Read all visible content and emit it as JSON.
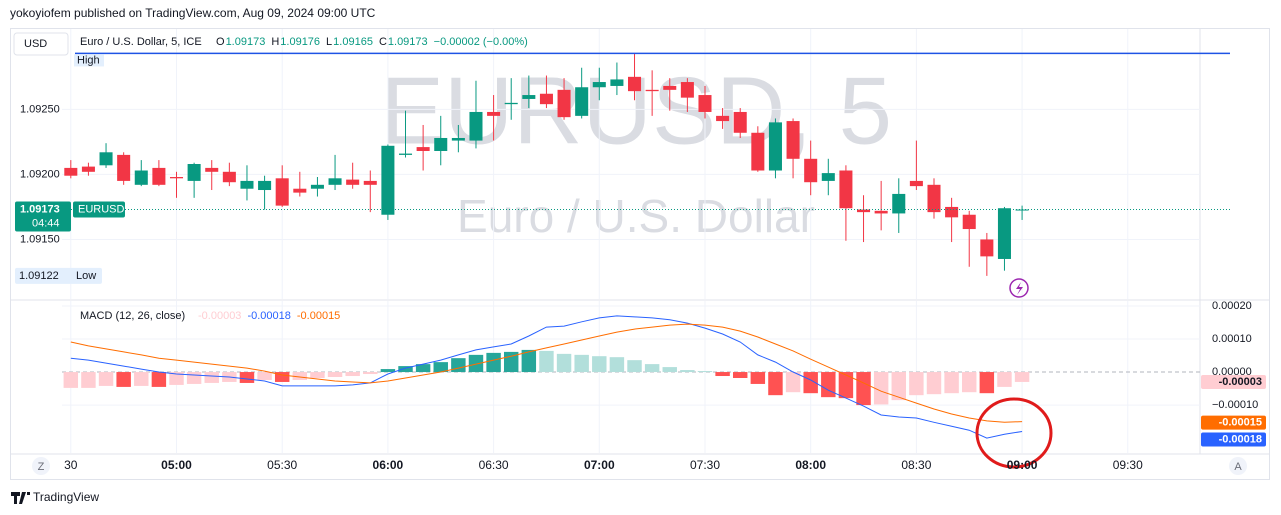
{
  "header": {
    "published": "yokoyiofem published on TradingView.com, Aug 09, 2024 09:00 UTC",
    "currency": "USD",
    "symbol": "Euro / U.S. Dollar, 5, ICE",
    "ohlc_labels": [
      "O",
      "H",
      "L",
      "C"
    ],
    "change": "−0.00002 (−0.00%)"
  },
  "footer": {
    "brand": "TradingView",
    "left_button": "Z",
    "right_button": "A"
  },
  "chart_data": [
    {
      "type": "candlestick",
      "watermark": "EURUSD, 5",
      "subtitle": "Euro / U.S. Dollar",
      "symbol_label": "EURUSD",
      "countdown": "04:44",
      "high_label": "High",
      "low_label": "Low",
      "up_color": "#089981",
      "down_color": "#f23645",
      "high_line_color": "#1e53e5",
      "grid": true,
      "open": [
        1.09205,
        1.09206,
        1.09207,
        1.09215,
        1.09192,
        1.09205,
        1.09198,
        1.09195,
        1.09205,
        1.09202,
        1.09189,
        1.09188,
        1.09197,
        1.09189,
        1.09189,
        1.09192,
        1.09196,
        1.09195,
        1.09169,
        1.09215,
        1.09221,
        1.09218,
        1.09226,
        1.09226,
        1.09248,
        1.09254,
        1.09258,
        1.09262,
        1.09265,
        1.09245,
        1.09267,
        1.09268,
        1.09275,
        1.09265,
        1.09268,
        1.09271,
        1.09261,
        1.09245,
        1.09248,
        1.09232,
        1.09203,
        1.09241,
        1.09212,
        1.09195,
        1.09203,
        1.09173,
        1.09172,
        1.0917,
        1.09195,
        1.09192,
        1.09175,
        1.09169,
        1.0915,
        1.09135,
        1.09173
      ],
      "high": [
        1.09211,
        1.09209,
        1.09224,
        1.09217,
        1.09211,
        1.09211,
        1.09202,
        1.09209,
        1.09211,
        1.09209,
        1.09207,
        1.09199,
        1.09207,
        1.09202,
        1.09198,
        1.09215,
        1.09209,
        1.09203,
        1.09223,
        1.09249,
        1.09238,
        1.09245,
        1.09238,
        1.09272,
        1.09261,
        1.09274,
        1.09276,
        1.09276,
        1.09274,
        1.09282,
        1.09282,
        1.09286,
        1.09293,
        1.0928,
        1.09274,
        1.09274,
        1.09268,
        1.09251,
        1.09251,
        1.09237,
        1.09243,
        1.09243,
        1.09226,
        1.09212,
        1.09207,
        1.09184,
        1.09195,
        1.09197,
        1.09226,
        1.09197,
        1.09182,
        1.09172,
        1.09155,
        1.09175,
        1.09176
      ],
      "low": [
        1.09197,
        1.09199,
        1.09205,
        1.09192,
        1.09191,
        1.09191,
        1.09182,
        1.09182,
        1.09188,
        1.09191,
        1.0918,
        1.09173,
        1.09175,
        1.09183,
        1.09183,
        1.09188,
        1.09189,
        1.09171,
        1.09165,
        1.09213,
        1.09203,
        1.09207,
        1.09217,
        1.0922,
        1.09226,
        1.09242,
        1.09251,
        1.09251,
        1.09242,
        1.09243,
        1.09257,
        1.09261,
        1.09257,
        1.09245,
        1.09249,
        1.09248,
        1.09243,
        1.09235,
        1.09228,
        1.09202,
        1.09197,
        1.09197,
        1.09184,
        1.09184,
        1.09149,
        1.09148,
        1.09157,
        1.09155,
        1.09188,
        1.09166,
        1.09148,
        1.09129,
        1.09122,
        1.09126,
        1.09165
      ],
      "close": [
        1.09199,
        1.09202,
        1.09217,
        1.09195,
        1.09203,
        1.09192,
        1.09197,
        1.09208,
        1.09202,
        1.09194,
        1.09195,
        1.09195,
        1.09176,
        1.09186,
        1.09192,
        1.09197,
        1.09192,
        1.09192,
        1.09222,
        1.09216,
        1.09218,
        1.09228,
        1.09228,
        1.09248,
        1.09245,
        1.09255,
        1.09261,
        1.09254,
        1.09244,
        1.09267,
        1.09271,
        1.09273,
        1.09264,
        1.09264,
        1.09265,
        1.09259,
        1.09248,
        1.09241,
        1.09232,
        1.09203,
        1.0924,
        1.09212,
        1.09194,
        1.09201,
        1.09174,
        1.09171,
        1.0917,
        1.09185,
        1.09191,
        1.09171,
        1.09167,
        1.09158,
        1.09137,
        1.09174,
        1.09173
      ],
      "xlim": [
        -0.5,
        64.1
      ],
      "xticks": [
        {
          "value": 0,
          "label": "30"
        },
        {
          "value": 6,
          "label": "05:00"
        },
        {
          "value": 12,
          "label": "05:30"
        },
        {
          "value": 18,
          "label": "06:00"
        },
        {
          "value": 24,
          "label": "06:30"
        },
        {
          "value": 30,
          "label": "07:00"
        },
        {
          "value": 36,
          "label": "07:30"
        },
        {
          "value": 42,
          "label": "08:00"
        },
        {
          "value": 48,
          "label": "08:30"
        },
        {
          "value": 54,
          "label": "09:00"
        },
        {
          "value": 60,
          "label": "09:30"
        }
      ],
      "ylim": [
        1.09105,
        1.09311
      ],
      "yticks": [
        {
          "value": 1.0925,
          "label": "1.09250"
        },
        {
          "value": 1.092,
          "label": "1.09200"
        },
        {
          "value": 1.0915,
          "label": "1.09150"
        }
      ]
    },
    {
      "type": "macd",
      "title": "MACD (12, 26, close)",
      "histogram": {
        "colors": {
          "rising_positive": "#26a69a",
          "falling_positive": "#b2dfdb",
          "falling_negative": "#ff5252",
          "rising_negative": "#ffcdd2"
        },
        "values": [
          -4.8e-05,
          -4.8e-05,
          -4.2e-05,
          -4.5e-05,
          -4.2e-05,
          -4.5e-05,
          -3.9e-05,
          -3.6e-05,
          -3.3e-05,
          -3e-05,
          -3.3e-05,
          -2.4e-05,
          -3e-05,
          -2.4e-05,
          -1.8e-05,
          -1.5e-05,
          -1.2e-05,
          -6e-06,
          9e-06,
          1.8e-05,
          2.4e-05,
          3e-05,
          4.2e-05,
          5.2e-05,
          5.8e-05,
          6.1e-05,
          6.7e-05,
          6.4e-05,
          5.5e-05,
          5.2e-05,
          4.8e-05,
          4.5e-05,
          3.6e-05,
          2.4e-05,
          1.5e-05,
          6e-06,
          3e-06,
          -1.2e-05,
          -1.8e-05,
          -3.6e-05,
          -7e-05,
          -6.1e-05,
          -6.4e-05,
          -7.6e-05,
          -7.9e-05,
          -0.0001,
          -9.8e-05,
          -8.5e-05,
          -7e-05,
          -6.7e-05,
          -6.4e-05,
          -6.1e-05,
          -6.4e-05,
          -4.5e-05,
          -3e-05
        ]
      },
      "series": [
        {
          "color": "#2962ff",
          "values": [
            4.2e-05,
            3.6e-05,
            2.7e-05,
            1.8e-05,
            9e-06,
            0,
            -6e-06,
            -9e-06,
            -1.2e-05,
            -1.5e-05,
            -2.1e-05,
            -2.7e-05,
            -4.2e-05,
            -4.2e-05,
            -4.2e-05,
            -4.2e-05,
            -3.9e-05,
            -3.3e-05,
            -6e-06,
            1.2e-05,
            2.4e-05,
            3.6e-05,
            5.2e-05,
            6.7e-05,
            7.6e-05,
            8.5e-05,
            0.000109,
            0.000136,
            0.000139,
            0.000152,
            0.000164,
            0.00017,
            0.000167,
            0.000164,
            0.000158,
            0.000148,
            0.000133,
            0.000115,
            9.1e-05,
            5.2e-05,
            3e-05,
            0,
            -2.4e-05,
            -5.5e-05,
            -7.9e-05,
            -0.000103,
            -0.00013,
            -0.000136,
            -0.000139,
            -0.000152,
            -0.000164,
            -0.000176,
            -0.0002,
            -0.000188,
            -0.00018
          ]
        },
        {
          "color": "#ff6d00",
          "values": [
            9.1e-05,
            7.9e-05,
            7e-05,
            6.1e-05,
            5.2e-05,
            4.2e-05,
            3.6e-05,
            3e-05,
            2.4e-05,
            1.8e-05,
            1.2e-05,
            3e-06,
            -9e-06,
            -1.5e-05,
            -2.1e-05,
            -2.7e-05,
            -3e-05,
            -3.3e-05,
            -2.7e-05,
            -1.8e-05,
            -9e-06,
            0,
            1.2e-05,
            2.4e-05,
            3.6e-05,
            4.8e-05,
            6.1e-05,
            7.3e-05,
            8.5e-05,
            9.7e-05,
            0.000109,
            0.000121,
            0.00013,
            0.000136,
            0.000142,
            0.000145,
            0.000142,
            0.000136,
            0.000124,
            0.000106,
            8.5e-05,
            6.4e-05,
            3.9e-05,
            1.5e-05,
            -9e-06,
            -3.3e-05,
            -5.8e-05,
            -7.6e-05,
            -9.4e-05,
            -0.000112,
            -0.000127,
            -0.000139,
            -0.000148,
            -0.000152,
            -0.00015
          ]
        }
      ],
      "ylim": [
        -0.000242,
        0.000212
      ],
      "yticks": [
        {
          "value": 0.0002,
          "label": "0.00020"
        },
        {
          "value": 0.0001,
          "label": "0.00010"
        },
        {
          "value": 0,
          "label": "0.00000"
        },
        {
          "value": -0.0001,
          "label": "−0.00010"
        }
      ]
    }
  ]
}
